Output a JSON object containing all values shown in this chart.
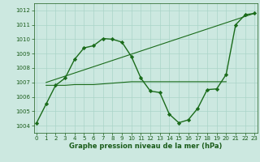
{
  "series": [
    {
      "x": [
        0,
        1,
        2,
        3,
        4,
        5,
        6,
        7,
        8,
        9,
        10,
        11,
        12,
        13,
        14,
        15,
        16,
        17,
        18,
        19,
        20,
        21,
        22,
        23
      ],
      "y": [
        1004.2,
        1005.5,
        1006.8,
        1007.3,
        1008.6,
        1009.4,
        1009.55,
        1010.05,
        1010.0,
        1009.8,
        1008.8,
        1007.3,
        1006.4,
        1006.3,
        1004.8,
        1004.2,
        1004.4,
        1005.2,
        1006.5,
        1006.55,
        1007.55,
        1011.0,
        1011.7,
        1011.8
      ],
      "color": "#1a6b1a",
      "marker": "D",
      "markersize": 2.2,
      "linewidth": 1.0
    },
    {
      "x": [
        1,
        2,
        3,
        4,
        5,
        6,
        7,
        8,
        9,
        10,
        11,
        12,
        13,
        14,
        15,
        16,
        17,
        18,
        19,
        20
      ],
      "y": [
        1006.8,
        1006.8,
        1006.8,
        1006.85,
        1006.85,
        1006.85,
        1006.9,
        1006.95,
        1007.0,
        1007.05,
        1007.05,
        1007.05,
        1007.05,
        1007.05,
        1007.05,
        1007.05,
        1007.05,
        1007.05,
        1007.05,
        1007.05
      ],
      "color": "#1a6b1a",
      "marker": null,
      "linewidth": 0.8
    },
    {
      "x": [
        1,
        23
      ],
      "y": [
        1007.0,
        1011.8
      ],
      "color": "#1a6b1a",
      "marker": null,
      "linewidth": 0.8
    }
  ],
  "background_color": "#cce8e0",
  "grid_color": "#aad4c8",
  "xlabel": "Graphe pression niveau de la mer (hPa)",
  "xlabel_color": "#1a5c1a",
  "xlabel_fontsize": 6.0,
  "xlabel_bold": true,
  "yticks": [
    1004,
    1005,
    1006,
    1007,
    1008,
    1009,
    1010,
    1011,
    1012
  ],
  "xticks": [
    0,
    1,
    2,
    3,
    4,
    5,
    6,
    7,
    8,
    9,
    10,
    11,
    12,
    13,
    14,
    15,
    16,
    17,
    18,
    19,
    20,
    21,
    22,
    23
  ],
  "ylim": [
    1003.5,
    1012.5
  ],
  "xlim": [
    -0.3,
    23.3
  ],
  "tick_color": "#1a5c1a",
  "tick_fontsize": 5.0,
  "spine_color": "#1a5c1a"
}
